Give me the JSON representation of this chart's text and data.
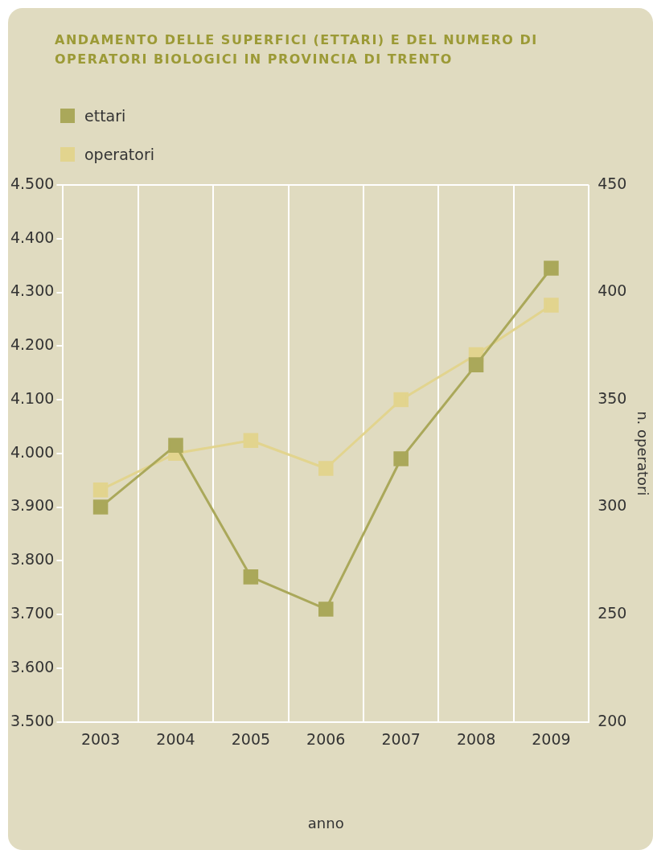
{
  "chart_data": {
    "type": "line",
    "title": "ANDAMENTO DELLE SUPERFICI (ETTARI) E DEL NUMERO DI OPERATORI BIOLOGICI IN PROVINCIA DI TRENTO",
    "xlabel": "anno",
    "y2label": "n. operatori",
    "categories": [
      "2003",
      "2004",
      "2005",
      "2006",
      "2007",
      "2008",
      "2009"
    ],
    "series": [
      {
        "name": "ettari",
        "color": "#aaa85a",
        "values": [
          3900,
          4015,
          3770,
          3710,
          3990,
          4165,
          4345
        ]
      },
      {
        "name": "operatori",
        "color": "#e2d48e",
        "axis": "y2",
        "values": [
          308,
          325,
          331,
          318,
          350,
          371,
          394
        ]
      }
    ],
    "ylim": [
      3500,
      4500
    ],
    "yticks": [
      {
        "value": 3500,
        "label": "3.500"
      },
      {
        "value": 3600,
        "label": "3.600"
      },
      {
        "value": 3700,
        "label": "3.700"
      },
      {
        "value": 3800,
        "label": "3.800"
      },
      {
        "value": 3900,
        "label": "3.900"
      },
      {
        "value": 4000,
        "label": "4.000"
      },
      {
        "value": 4100,
        "label": "4.100"
      },
      {
        "value": 4200,
        "label": "4.200"
      },
      {
        "value": 4300,
        "label": "4.300"
      },
      {
        "value": 4400,
        "label": "4.400"
      },
      {
        "value": 4500,
        "label": "4.500"
      }
    ],
    "y2lim": [
      200,
      450
    ],
    "y2ticks": [
      200,
      250,
      300,
      350,
      400,
      450
    ],
    "grid": "x",
    "legend": "top left",
    "marker": "square",
    "line_style": "solid"
  }
}
